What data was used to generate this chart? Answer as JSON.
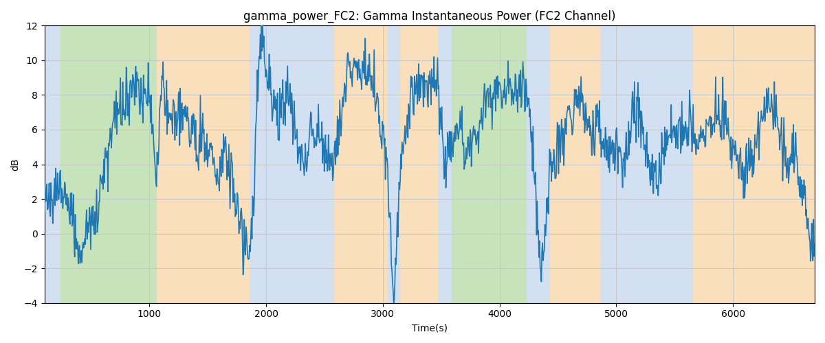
{
  "title": "gamma_power_FC2: Gamma Instantaneous Power (FC2 Channel)",
  "xlabel": "Time(s)",
  "ylabel": "dB",
  "ylim": [
    -4,
    12
  ],
  "xlim": [
    100,
    6700
  ],
  "line_color": "#1f77b4",
  "line_width": 1.2,
  "bg_color": "white",
  "grid_color": "#c8c8c8",
  "title_fontsize": 12,
  "label_fontsize": 10,
  "tick_fontsize": 10,
  "bands": [
    {
      "xmin": 100,
      "xmax": 240,
      "color": "#adc8e8",
      "alpha": 0.55
    },
    {
      "xmin": 240,
      "xmax": 1060,
      "color": "#90c878",
      "alpha": 0.5
    },
    {
      "xmin": 1060,
      "xmax": 1860,
      "color": "#f5c07a",
      "alpha": 0.5
    },
    {
      "xmin": 1860,
      "xmax": 2580,
      "color": "#adc8e8",
      "alpha": 0.55
    },
    {
      "xmin": 2580,
      "xmax": 3040,
      "color": "#f5c07a",
      "alpha": 0.5
    },
    {
      "xmin": 3040,
      "xmax": 3150,
      "color": "#adc8e8",
      "alpha": 0.55
    },
    {
      "xmin": 3150,
      "xmax": 3470,
      "color": "#f5c07a",
      "alpha": 0.5
    },
    {
      "xmin": 3470,
      "xmax": 3590,
      "color": "#adc8e8",
      "alpha": 0.55
    },
    {
      "xmin": 3590,
      "xmax": 4230,
      "color": "#90c878",
      "alpha": 0.5
    },
    {
      "xmin": 4230,
      "xmax": 4430,
      "color": "#adc8e8",
      "alpha": 0.55
    },
    {
      "xmin": 4430,
      "xmax": 4860,
      "color": "#f5c07a",
      "alpha": 0.5
    },
    {
      "xmin": 4860,
      "xmax": 5660,
      "color": "#adc8e8",
      "alpha": 0.55
    },
    {
      "xmin": 5660,
      "xmax": 5810,
      "color": "#f5c07a",
      "alpha": 0.5
    },
    {
      "xmin": 5810,
      "xmax": 6700,
      "color": "#f5c07a",
      "alpha": 0.5
    }
  ],
  "seed": 42,
  "n_points": 1300
}
